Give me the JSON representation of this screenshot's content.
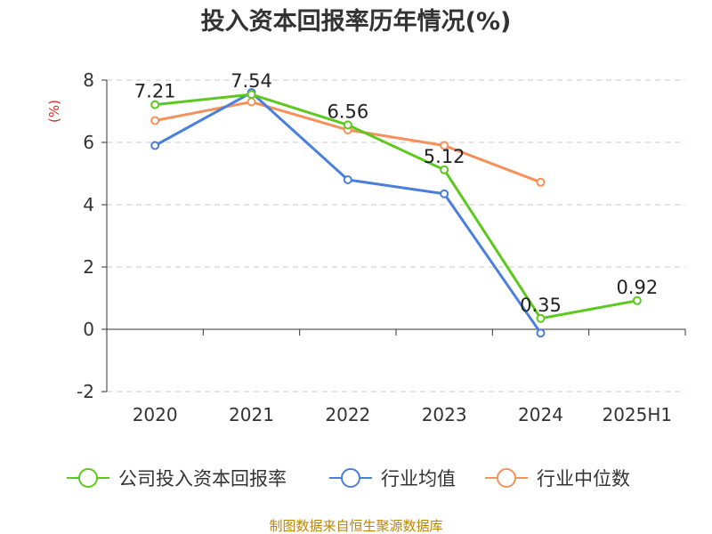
{
  "chart_data": {
    "type": "line",
    "title": "投入资本回报率历年情况(%)",
    "unit_label": "(%)",
    "categories": [
      "2020",
      "2021",
      "2022",
      "2023",
      "2024",
      "2025H1"
    ],
    "y_ticks": [
      "8",
      "6",
      "4",
      "2",
      "0",
      "-2"
    ],
    "ylim": [
      -2,
      8
    ],
    "grid": true,
    "legend_position": "bottom",
    "series": [
      {
        "name": "公司投入资本回报率",
        "color": "#5dc91f",
        "values": [
          7.21,
          7.54,
          6.56,
          5.12,
          0.35,
          0.92
        ],
        "labels": [
          "7.21",
          "7.54",
          "6.56",
          "5.12",
          "0.35",
          "0.92"
        ]
      },
      {
        "name": "行业均值",
        "color": "#4a7fdb",
        "values": [
          5.9,
          7.6,
          4.8,
          4.35,
          -0.12,
          null
        ]
      },
      {
        "name": "行业中位数",
        "color": "#f5915a",
        "values": [
          6.7,
          7.3,
          6.4,
          5.9,
          4.72,
          null
        ]
      }
    ]
  },
  "source": "制图数据来自恒生聚源数据库"
}
